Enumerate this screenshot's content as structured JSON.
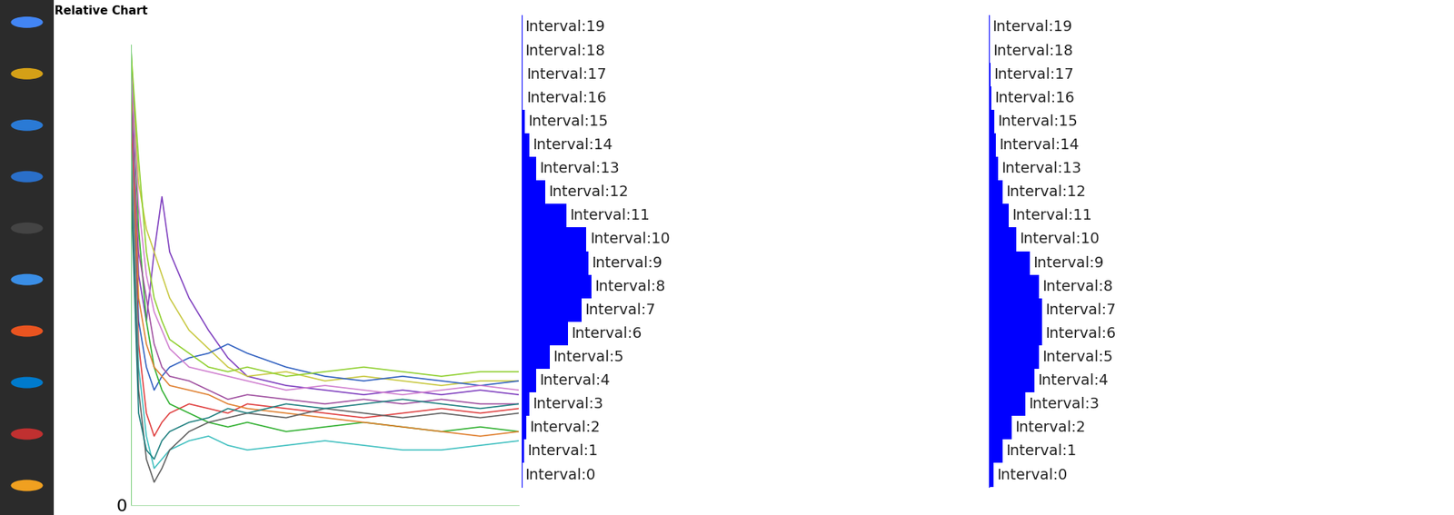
{
  "window_title": "Relative Chart",
  "chart_data": [
    {
      "type": "line",
      "tick_labels": "y",
      "x": [
        0,
        2,
        4,
        6,
        8,
        10,
        15,
        20,
        25,
        30,
        40,
        50,
        60,
        70,
        80,
        90,
        100
      ],
      "xlim": [
        0,
        100
      ],
      "xticks": [],
      "ylim": [
        0,
        100
      ],
      "yticks": [
        0
      ],
      "series": [
        {
          "color": "#7f3fbf",
          "values": [
            95,
            50,
            40,
            55,
            67,
            55,
            45,
            38,
            32,
            28,
            26,
            25,
            24,
            25,
            24,
            25,
            24
          ]
        },
        {
          "color": "#c8c840",
          "values": [
            98,
            70,
            60,
            55,
            50,
            45,
            38,
            34,
            30,
            28,
            29,
            27,
            28,
            27,
            26,
            27,
            27
          ]
        },
        {
          "color": "#3060c0",
          "values": [
            90,
            40,
            30,
            25,
            28,
            30,
            32,
            33,
            35,
            33,
            30,
            28,
            27,
            28,
            27,
            26,
            27
          ]
        },
        {
          "color": "#e04040",
          "values": [
            85,
            35,
            20,
            15,
            18,
            20,
            22,
            21,
            20,
            22,
            21,
            20,
            19,
            20,
            21,
            20,
            21
          ]
        },
        {
          "color": "#30b030",
          "values": [
            100,
            60,
            40,
            30,
            25,
            22,
            20,
            18,
            17,
            18,
            16,
            17,
            18,
            17,
            16,
            17,
            16
          ]
        },
        {
          "color": "#40c0c0",
          "values": [
            80,
            30,
            15,
            8,
            10,
            12,
            14,
            15,
            13,
            12,
            13,
            14,
            13,
            12,
            12,
            13,
            14
          ]
        },
        {
          "color": "#e08030",
          "values": [
            92,
            45,
            35,
            30,
            28,
            26,
            25,
            24,
            22,
            21,
            20,
            19,
            18,
            17,
            16,
            15,
            16
          ]
        },
        {
          "color": "#a050a0",
          "values": [
            88,
            55,
            45,
            35,
            30,
            28,
            27,
            25,
            23,
            24,
            23,
            22,
            23,
            22,
            23,
            22,
            22
          ]
        },
        {
          "color": "#606060",
          "values": [
            75,
            25,
            10,
            5,
            8,
            12,
            16,
            18,
            19,
            20,
            19,
            21,
            20,
            19,
            20,
            19,
            20
          ]
        },
        {
          "color": "#d080d0",
          "values": [
            96,
            65,
            50,
            42,
            38,
            34,
            30,
            29,
            28,
            27,
            25,
            26,
            25,
            24,
            25,
            26,
            25
          ]
        },
        {
          "color": "#208080",
          "values": [
            70,
            20,
            12,
            10,
            14,
            16,
            18,
            19,
            21,
            20,
            22,
            21,
            22,
            23,
            22,
            21,
            22
          ]
        },
        {
          "color": "#90d030",
          "values": [
            99,
            75,
            55,
            45,
            40,
            36,
            33,
            30,
            29,
            30,
            28,
            29,
            30,
            29,
            28,
            29,
            29
          ]
        }
      ]
    },
    {
      "type": "bar",
      "orientation": "horizontal",
      "tick_labels": false,
      "color": "#0000ff",
      "categories": [
        "Interval:0",
        "Interval:1",
        "Interval:2",
        "Interval:3",
        "Interval:4",
        "Interval:5",
        "Interval:6",
        "Interval:7",
        "Interval:8",
        "Interval:9",
        "Interval:10",
        "Interval:11",
        "Interval:12",
        "Interval:13",
        "Interval:14",
        "Interval:15",
        "Interval:16",
        "Interval:17",
        "Interval:18",
        "Interval:19"
      ],
      "values": [
        0,
        2,
        5,
        8,
        15,
        30,
        50,
        65,
        75,
        72,
        70,
        48,
        25,
        15,
        8,
        3,
        1,
        1,
        0,
        0
      ],
      "xlim": [
        0,
        500
      ],
      "xticks": [],
      "ylim": [
        -0.5,
        19.5
      ],
      "yticks": []
    },
    {
      "type": "bar",
      "orientation": "horizontal",
      "tick_labels": false,
      "color": "#0000ff",
      "categories": [
        "Interval:0",
        "Interval:1",
        "Interval:2",
        "Interval:3",
        "Interval:4",
        "Interval:5",
        "Interval:6",
        "Interval:7",
        "Interval:8",
        "Interval:9",
        "Interval:10",
        "Interval:11",
        "Interval:12",
        "Interval:13",
        "Interval:14",
        "Interval:15",
        "Interval:16",
        "Interval:17",
        "Interval:18",
        "Interval:19"
      ],
      "values": [
        5,
        15,
        25,
        40,
        50,
        55,
        58,
        58,
        55,
        45,
        30,
        22,
        15,
        10,
        8,
        6,
        3,
        2,
        1,
        0
      ],
      "xlim": [
        0,
        500
      ],
      "xticks": [],
      "ylim": [
        -0.5,
        19.5
      ],
      "yticks": []
    }
  ]
}
